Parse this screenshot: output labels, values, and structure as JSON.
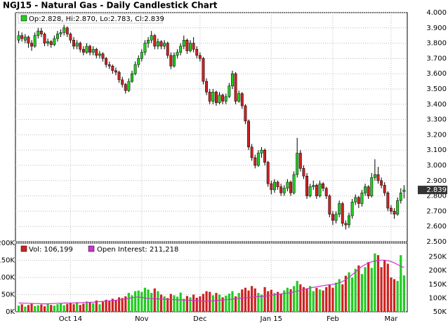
{
  "chart_data": {
    "type": "candlestick",
    "title": "NGJ15 - Natural Gas - Daily Candlestick Chart",
    "legend_text": "Op:2.828, Hi:2.870, Lo:2.783, Cl:2.839",
    "last_label": "2.839",
    "up_color": "#22cc22",
    "down_color": "#cc2222",
    "grid": true,
    "ylim": [
      2.5,
      4.0
    ],
    "yticks": [
      {
        "value": 2.5,
        "label": "2.500"
      },
      {
        "value": 2.6,
        "label": "2.600"
      },
      {
        "value": 2.7,
        "label": "2.700"
      },
      {
        "value": 2.8,
        "label": "2.800"
      },
      {
        "value": 2.9,
        "label": "2.900"
      },
      {
        "value": 3.0,
        "label": "3.000"
      },
      {
        "value": 3.1,
        "label": "3.100"
      },
      {
        "value": 3.2,
        "label": "3.200"
      },
      {
        "value": 3.3,
        "label": "3.300"
      },
      {
        "value": 3.4,
        "label": "3.400"
      },
      {
        "value": 3.5,
        "label": "3.500"
      },
      {
        "value": 3.6,
        "label": "3.600"
      },
      {
        "value": 3.7,
        "label": "3.700"
      },
      {
        "value": 3.8,
        "label": "3.800"
      },
      {
        "value": 3.9,
        "label": "3.900"
      },
      {
        "value": 4.0,
        "label": "4.000"
      }
    ],
    "categories": [
      null,
      null,
      null,
      null,
      null,
      null,
      null,
      null,
      null,
      null,
      null,
      null,
      null,
      null,
      null,
      null,
      "Oct 14",
      null,
      null,
      null,
      null,
      null,
      null,
      null,
      null,
      null,
      null,
      null,
      null,
      null,
      null,
      null,
      null,
      null,
      null,
      null,
      null,
      null,
      "Nov",
      null,
      null,
      null,
      null,
      null,
      null,
      null,
      null,
      null,
      null,
      null,
      null,
      null,
      null,
      null,
      null,
      null,
      "Dec",
      null,
      null,
      null,
      null,
      null,
      null,
      null,
      null,
      null,
      null,
      null,
      null,
      null,
      null,
      null,
      null,
      null,
      null,
      null,
      null,
      null,
      "Jan 15",
      null,
      null,
      null,
      null,
      null,
      null,
      null,
      null,
      null,
      null,
      null,
      null,
      null,
      null,
      null,
      null,
      null,
      null,
      "Feb",
      null,
      null,
      null,
      null,
      null,
      null,
      null,
      null,
      null,
      null,
      null,
      null,
      null,
      null,
      null,
      null,
      null,
      "Mar",
      null,
      null,
      null,
      null
    ],
    "ohlc": [
      [
        3.82,
        3.88,
        3.8,
        3.85
      ],
      [
        3.85,
        3.87,
        3.81,
        3.83
      ],
      [
        3.82,
        3.86,
        3.8,
        3.84
      ],
      [
        3.84,
        3.85,
        3.77,
        3.8
      ],
      [
        3.8,
        3.82,
        3.75,
        3.78
      ],
      [
        3.78,
        3.87,
        3.77,
        3.85
      ],
      [
        3.85,
        3.9,
        3.83,
        3.88
      ],
      [
        3.88,
        3.9,
        3.84,
        3.86
      ],
      [
        3.86,
        3.87,
        3.78,
        3.8
      ],
      [
        3.8,
        3.83,
        3.78,
        3.81
      ],
      [
        3.81,
        3.82,
        3.77,
        3.79
      ],
      [
        3.79,
        3.85,
        3.78,
        3.83
      ],
      [
        3.83,
        3.88,
        3.81,
        3.86
      ],
      [
        3.86,
        3.89,
        3.84,
        3.87
      ],
      [
        3.87,
        3.92,
        3.85,
        3.9
      ],
      [
        3.9,
        3.91,
        3.84,
        3.86
      ],
      [
        3.86,
        3.87,
        3.8,
        3.82
      ],
      [
        3.82,
        3.84,
        3.76,
        3.78
      ],
      [
        3.78,
        3.82,
        3.76,
        3.8
      ],
      [
        3.8,
        3.81,
        3.74,
        3.76
      ],
      [
        3.76,
        3.78,
        3.72,
        3.74
      ],
      [
        3.74,
        3.8,
        3.73,
        3.78
      ],
      [
        3.78,
        3.79,
        3.72,
        3.74
      ],
      [
        3.74,
        3.78,
        3.72,
        3.76
      ],
      [
        3.76,
        3.77,
        3.7,
        3.72
      ],
      [
        3.72,
        3.75,
        3.7,
        3.73
      ],
      [
        3.73,
        3.74,
        3.68,
        3.7
      ],
      [
        3.7,
        3.71,
        3.64,
        3.66
      ],
      [
        3.66,
        3.68,
        3.63,
        3.65
      ],
      [
        3.65,
        3.66,
        3.6,
        3.62
      ],
      [
        3.62,
        3.64,
        3.59,
        3.61
      ],
      [
        3.61,
        3.62,
        3.54,
        3.56
      ],
      [
        3.56,
        3.58,
        3.51,
        3.53
      ],
      [
        3.53,
        3.54,
        3.47,
        3.49
      ],
      [
        3.49,
        3.57,
        3.48,
        3.55
      ],
      [
        3.55,
        3.62,
        3.54,
        3.6
      ],
      [
        3.6,
        3.68,
        3.59,
        3.66
      ],
      [
        3.66,
        3.72,
        3.64,
        3.7
      ],
      [
        3.7,
        3.76,
        3.68,
        3.74
      ],
      [
        3.74,
        3.82,
        3.72,
        3.8
      ],
      [
        3.8,
        3.84,
        3.77,
        3.82
      ],
      [
        3.82,
        3.88,
        3.8,
        3.85
      ],
      [
        3.85,
        3.86,
        3.76,
        3.78
      ],
      [
        3.78,
        3.83,
        3.76,
        3.81
      ],
      [
        3.81,
        3.82,
        3.76,
        3.78
      ],
      [
        3.78,
        3.82,
        3.76,
        3.8
      ],
      [
        3.8,
        3.81,
        3.7,
        3.72
      ],
      [
        3.72,
        3.74,
        3.63,
        3.65
      ],
      [
        3.65,
        3.74,
        3.64,
        3.72
      ],
      [
        3.72,
        3.76,
        3.7,
        3.74
      ],
      [
        3.74,
        3.8,
        3.72,
        3.78
      ],
      [
        3.78,
        3.85,
        3.76,
        3.82
      ],
      [
        3.82,
        3.83,
        3.73,
        3.75
      ],
      [
        3.75,
        3.82,
        3.74,
        3.8
      ],
      [
        3.8,
        3.84,
        3.74,
        3.76
      ],
      [
        3.76,
        3.78,
        3.7,
        3.72
      ],
      [
        3.72,
        3.74,
        3.68,
        3.7
      ],
      [
        3.7,
        3.71,
        3.53,
        3.55
      ],
      [
        3.55,
        3.57,
        3.46,
        3.48
      ],
      [
        3.48,
        3.5,
        3.4,
        3.42
      ],
      [
        3.42,
        3.5,
        3.4,
        3.48
      ],
      [
        3.48,
        3.49,
        3.39,
        3.41
      ],
      [
        3.41,
        3.48,
        3.4,
        3.46
      ],
      [
        3.46,
        3.47,
        3.4,
        3.42
      ],
      [
        3.42,
        3.47,
        3.4,
        3.45
      ],
      [
        3.45,
        3.54,
        3.44,
        3.52
      ],
      [
        3.52,
        3.62,
        3.5,
        3.6
      ],
      [
        3.6,
        3.61,
        3.4,
        3.42
      ],
      [
        3.42,
        3.49,
        3.41,
        3.47
      ],
      [
        3.47,
        3.48,
        3.37,
        3.39
      ],
      [
        3.39,
        3.4,
        3.27,
        3.29
      ],
      [
        3.29,
        3.3,
        3.1,
        3.12
      ],
      [
        3.12,
        3.14,
        3.03,
        3.05
      ],
      [
        3.05,
        3.07,
        2.98,
        3.0
      ],
      [
        3.0,
        3.1,
        2.99,
        3.08
      ],
      [
        3.08,
        3.12,
        3.05,
        3.1
      ],
      [
        3.1,
        3.11,
        3.0,
        3.02
      ],
      [
        3.02,
        3.03,
        2.86,
        2.88
      ],
      [
        2.88,
        2.9,
        2.81,
        2.84
      ],
      [
        2.84,
        2.91,
        2.82,
        2.89
      ],
      [
        2.89,
        2.9,
        2.84,
        2.86
      ],
      [
        2.86,
        2.88,
        2.8,
        2.82
      ],
      [
        2.82,
        2.87,
        2.8,
        2.85
      ],
      [
        2.85,
        2.91,
        2.83,
        2.89
      ],
      [
        2.89,
        2.9,
        2.8,
        2.82
      ],
      [
        2.82,
        2.96,
        2.81,
        2.94
      ],
      [
        2.94,
        3.18,
        2.92,
        3.08
      ],
      [
        3.08,
        3.1,
        2.96,
        2.98
      ],
      [
        2.98,
        3.0,
        2.91,
        2.93
      ],
      [
        2.93,
        2.95,
        2.78,
        2.8
      ],
      [
        2.8,
        2.88,
        2.79,
        2.86
      ],
      [
        2.86,
        2.9,
        2.84,
        2.87
      ],
      [
        2.87,
        2.88,
        2.78,
        2.8
      ],
      [
        2.8,
        2.9,
        2.79,
        2.88
      ],
      [
        2.88,
        2.89,
        2.83,
        2.85
      ],
      [
        2.85,
        2.86,
        2.78,
        2.8
      ],
      [
        2.8,
        2.81,
        2.66,
        2.68
      ],
      [
        2.68,
        2.7,
        2.61,
        2.64
      ],
      [
        2.64,
        2.7,
        2.62,
        2.68
      ],
      [
        2.68,
        2.77,
        2.66,
        2.75
      ],
      [
        2.75,
        2.76,
        2.6,
        2.62
      ],
      [
        2.62,
        2.64,
        2.58,
        2.61
      ],
      [
        2.61,
        2.69,
        2.59,
        2.67
      ],
      [
        2.67,
        2.78,
        2.65,
        2.76
      ],
      [
        2.76,
        2.81,
        2.74,
        2.79
      ],
      [
        2.79,
        2.8,
        2.72,
        2.75
      ],
      [
        2.75,
        2.84,
        2.73,
        2.82
      ],
      [
        2.82,
        2.88,
        2.8,
        2.86
      ],
      [
        2.86,
        2.87,
        2.78,
        2.8
      ],
      [
        2.8,
        2.95,
        2.79,
        2.92
      ],
      [
        2.92,
        3.04,
        2.9,
        2.94
      ],
      [
        2.94,
        2.99,
        2.88,
        2.9
      ],
      [
        2.9,
        2.92,
        2.85,
        2.87
      ],
      [
        2.87,
        2.89,
        2.8,
        2.82
      ],
      [
        2.82,
        2.83,
        2.7,
        2.72
      ],
      [
        2.72,
        2.74,
        2.68,
        2.7
      ],
      [
        2.7,
        2.72,
        2.65,
        2.68
      ],
      [
        2.68,
        2.79,
        2.67,
        2.77
      ],
      [
        2.77,
        2.85,
        2.75,
        2.82
      ],
      [
        2.828,
        2.87,
        2.783,
        2.839
      ]
    ],
    "volume": {
      "legend_text": "Vol: 106,199",
      "color": "#cc2222",
      "ylim": [
        0,
        200000
      ],
      "yticks": [
        {
          "value": 0,
          "label": "0K"
        },
        {
          "value": 50000,
          "label": "50K"
        },
        {
          "value": 100000,
          "label": "100K"
        },
        {
          "value": 150000,
          "label": "150K"
        },
        {
          "value": 200000,
          "label": "200K"
        }
      ],
      "values": [
        18000,
        22000,
        15000,
        20000,
        25000,
        17000,
        19000,
        21000,
        16000,
        24000,
        20000,
        18000,
        22000,
        25000,
        19000,
        23000,
        26000,
        22000,
        28000,
        20000,
        24000,
        30000,
        27000,
        25000,
        33000,
        22000,
        29000,
        35000,
        31000,
        38000,
        34000,
        42000,
        40000,
        45000,
        55000,
        48000,
        60000,
        62000,
        58000,
        70000,
        65000,
        55000,
        68000,
        60000,
        50000,
        45000,
        40000,
        52000,
        48000,
        44000,
        56000,
        38000,
        46000,
        42000,
        50000,
        41000,
        45000,
        52000,
        60000,
        58000,
        48000,
        55000,
        50000,
        42000,
        47000,
        53000,
        60000,
        45000,
        55000,
        65000,
        70000,
        62000,
        75000,
        68000,
        55000,
        50000,
        72000,
        60000,
        64000,
        55000,
        58000,
        52000,
        62000,
        70000,
        66000,
        75000,
        90000,
        80000,
        72000,
        68000,
        75000,
        60000,
        70000,
        65000,
        62000,
        72000,
        78000,
        70000,
        85000,
        95000,
        80000,
        105000,
        115000,
        100000,
        125000,
        135000,
        110000,
        130000,
        145000,
        128000,
        170000,
        165000,
        130000,
        150000,
        140000,
        100000,
        95000,
        90000,
        165000,
        106199
      ]
    },
    "open_interest": {
      "legend_text": "Open Interest: 211,218",
      "color": "#cc33cc",
      "ylim": [
        50000,
        300000
      ],
      "yticks": [
        {
          "value": 50000,
          "label": "50K"
        },
        {
          "value": 100000,
          "label": "100K"
        },
        {
          "value": 150000,
          "label": "150K"
        },
        {
          "value": 200000,
          "label": "200K"
        },
        {
          "value": 250000,
          "label": "250K"
        }
      ],
      "values": [
        82000,
        82000,
        81000,
        81000,
        80000,
        80000,
        80000,
        79000,
        79000,
        79000,
        80000,
        80000,
        81000,
        81000,
        82000,
        82000,
        82000,
        82000,
        83000,
        83000,
        84000,
        84000,
        85000,
        85000,
        86000,
        87000,
        88000,
        89000,
        90000,
        91000,
        92000,
        93000,
        95000,
        97000,
        99000,
        101000,
        103000,
        104000,
        102000,
        100000,
        99000,
        98000,
        98000,
        97000,
        97000,
        96000,
        95000,
        95000,
        94000,
        94000,
        93000,
        93000,
        92000,
        92000,
        91000,
        90000,
        89000,
        88000,
        88000,
        89000,
        90000,
        91000,
        92000,
        93000,
        94000,
        95000,
        96000,
        98000,
        99000,
        100000,
        101000,
        102000,
        103000,
        104000,
        105000,
        106000,
        107000,
        108000,
        110000,
        112000,
        113000,
        115000,
        117000,
        118000,
        120000,
        122000,
        125000,
        128000,
        131000,
        134000,
        137000,
        139000,
        141000,
        143000,
        145000,
        147000,
        149000,
        150000,
        152000,
        155000,
        160000,
        168000,
        176000,
        185000,
        195000,
        205000,
        215000,
        222000,
        228000,
        232000,
        235000,
        237000,
        238000,
        238000,
        236000,
        233000,
        228000,
        222000,
        216000,
        211218
      ]
    }
  }
}
